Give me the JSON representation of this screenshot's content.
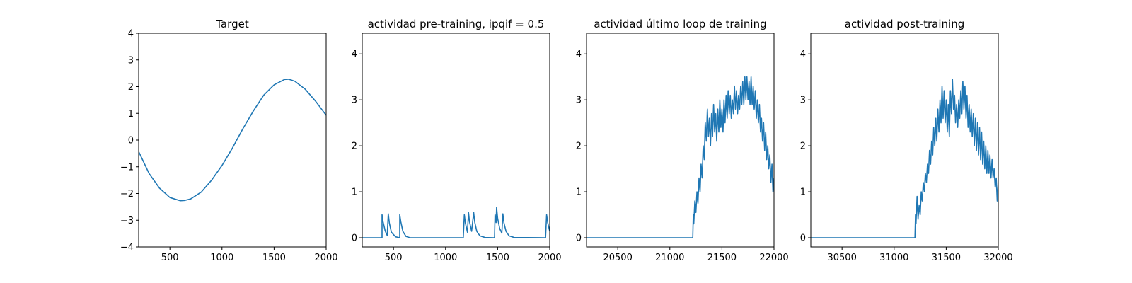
{
  "chart_data": [
    {
      "type": "line",
      "title": "Target",
      "xlim": [
        200,
        2000
      ],
      "ylim": [
        -4,
        4
      ],
      "xticks": [
        500,
        1000,
        1500,
        2000
      ],
      "yticks": [
        -4,
        -3,
        -2,
        -1,
        0,
        1,
        2,
        3,
        4
      ],
      "color": "#1f77b4",
      "series": [
        {
          "points": [
            [
              200,
              -0.43
            ],
            [
              300,
              -1.25
            ],
            [
              400,
              -1.8
            ],
            [
              500,
              -2.15
            ],
            [
              600,
              -2.27
            ],
            [
              640,
              -2.26
            ],
            [
              700,
              -2.2
            ],
            [
              800,
              -1.95
            ],
            [
              900,
              -1.5
            ],
            [
              1000,
              -0.95
            ],
            [
              1100,
              -0.3
            ],
            [
              1200,
              0.42
            ],
            [
              1300,
              1.08
            ],
            [
              1400,
              1.68
            ],
            [
              1500,
              2.07
            ],
            [
              1600,
              2.27
            ],
            [
              1640,
              2.28
            ],
            [
              1700,
              2.2
            ],
            [
              1800,
              1.9
            ],
            [
              1900,
              1.45
            ],
            [
              2000,
              0.93
            ]
          ]
        }
      ]
    },
    {
      "type": "line",
      "title": "actividad pre-training, ipqif = 0.5",
      "xlim": [
        200,
        2000
      ],
      "ylim": [
        -0.2,
        4.45
      ],
      "xticks": [
        500,
        1000,
        1500,
        2000
      ],
      "yticks": [
        0,
        1,
        2,
        3,
        4
      ],
      "color": "#1f77b4",
      "series": [
        {
          "points": [
            [
              200,
              0
            ],
            [
              390,
              0
            ],
            [
              390,
              0.5
            ],
            [
              400,
              0.35
            ],
            [
              420,
              0.15
            ],
            [
              440,
              0.05
            ],
            [
              450,
              0.52
            ],
            [
              460,
              0.32
            ],
            [
              480,
              0.12
            ],
            [
              520,
              0.02
            ],
            [
              560,
              0
            ],
            [
              560,
              0.5
            ],
            [
              570,
              0.35
            ],
            [
              590,
              0.14
            ],
            [
              620,
              0.03
            ],
            [
              660,
              0
            ],
            [
              1170,
              0
            ],
            [
              1180,
              0.5
            ],
            [
              1190,
              0.32
            ],
            [
              1210,
              0.12
            ],
            [
              1220,
              0.55
            ],
            [
              1230,
              0.35
            ],
            [
              1250,
              0.14
            ],
            [
              1270,
              0.55
            ],
            [
              1280,
              0.34
            ],
            [
              1300,
              0.14
            ],
            [
              1330,
              0.04
            ],
            [
              1380,
              0.005
            ],
            [
              1470,
              0
            ],
            [
              1475,
              0.5
            ],
            [
              1485,
              0.33
            ],
            [
              1490,
              0.66
            ],
            [
              1500,
              0.42
            ],
            [
              1520,
              0.2
            ],
            [
              1540,
              0.1
            ],
            [
              1550,
              0.52
            ],
            [
              1560,
              0.33
            ],
            [
              1580,
              0.14
            ],
            [
              1610,
              0.04
            ],
            [
              1660,
              0.005
            ],
            [
              1960,
              0
            ],
            [
              1970,
              0.5
            ],
            [
              1980,
              0.33
            ],
            [
              2000,
              0.14
            ]
          ]
        }
      ]
    },
    {
      "type": "line",
      "title": "actividad último loop de training",
      "xlim": [
        20200,
        22000
      ],
      "ylim": [
        -0.2,
        4.45
      ],
      "xticks": [
        20500,
        21000,
        21500,
        22000
      ],
      "yticks": [
        0,
        1,
        2,
        3,
        4
      ],
      "color": "#1f77b4",
      "series": [
        {
          "points": [
            [
              20200,
              0
            ],
            [
              21220,
              0
            ],
            [
              21225,
              0.5
            ],
            [
              21230,
              0.3
            ],
            [
              21240,
              0.8
            ],
            [
              21250,
              0.55
            ],
            [
              21260,
              1.0
            ],
            [
              21270,
              0.75
            ],
            [
              21280,
              1.3
            ],
            [
              21290,
              1.0
            ],
            [
              21300,
              1.6
            ],
            [
              21310,
              1.3
            ],
            [
              21320,
              2.0
            ],
            [
              21330,
              1.7
            ],
            [
              21340,
              2.5
            ],
            [
              21350,
              2.1
            ],
            [
              21360,
              2.8
            ],
            [
              21370,
              2.2
            ],
            [
              21380,
              2.6
            ],
            [
              21390,
              2.0
            ],
            [
              21400,
              2.7
            ],
            [
              21410,
              2.2
            ],
            [
              21420,
              2.9
            ],
            [
              21430,
              2.3
            ],
            [
              21440,
              2.7
            ],
            [
              21450,
              2.1
            ],
            [
              21460,
              2.8
            ],
            [
              21470,
              2.3
            ],
            [
              21480,
              3.0
            ],
            [
              21490,
              2.4
            ],
            [
              21500,
              2.8
            ],
            [
              21510,
              2.3
            ],
            [
              21520,
              3.0
            ],
            [
              21530,
              2.5
            ],
            [
              21540,
              3.1
            ],
            [
              21550,
              2.6
            ],
            [
              21560,
              3.2
            ],
            [
              21570,
              2.7
            ],
            [
              21580,
              3.1
            ],
            [
              21590,
              2.6
            ],
            [
              21600,
              3.0
            ],
            [
              21610,
              2.7
            ],
            [
              21620,
              3.3
            ],
            [
              21630,
              2.8
            ],
            [
              21640,
              3.2
            ],
            [
              21650,
              2.7
            ],
            [
              21660,
              3.1
            ],
            [
              21670,
              2.8
            ],
            [
              21680,
              3.3
            ],
            [
              21690,
              2.9
            ],
            [
              21700,
              3.4
            ],
            [
              21710,
              2.9
            ],
            [
              21720,
              3.5
            ],
            [
              21730,
              3.0
            ],
            [
              21740,
              3.5
            ],
            [
              21750,
              3.0
            ],
            [
              21760,
              3.4
            ],
            [
              21770,
              2.9
            ],
            [
              21780,
              3.5
            ],
            [
              21790,
              2.9
            ],
            [
              21800,
              3.3
            ],
            [
              21810,
              2.8
            ],
            [
              21820,
              3.2
            ],
            [
              21830,
              2.6
            ],
            [
              21840,
              3.0
            ],
            [
              21850,
              2.5
            ],
            [
              21860,
              2.9
            ],
            [
              21870,
              2.3
            ],
            [
              21880,
              2.6
            ],
            [
              21890,
              2.1
            ],
            [
              21900,
              2.5
            ],
            [
              21910,
              1.9
            ],
            [
              21920,
              2.3
            ],
            [
              21930,
              1.7
            ],
            [
              21940,
              2.0
            ],
            [
              21950,
              1.5
            ],
            [
              21960,
              1.8
            ],
            [
              21970,
              1.2
            ],
            [
              21980,
              1.6
            ],
            [
              21990,
              1.0
            ],
            [
              22000,
              1.3
            ]
          ]
        }
      ]
    },
    {
      "type": "line",
      "title": "actividad post-training",
      "xlim": [
        30200,
        32000
      ],
      "ylim": [
        -0.2,
        4.45
      ],
      "xticks": [
        30500,
        31000,
        31500,
        32000
      ],
      "yticks": [
        0,
        1,
        2,
        3,
        4
      ],
      "color": "#1f77b4",
      "series": [
        {
          "points": [
            [
              30200,
              0
            ],
            [
              31200,
              0
            ],
            [
              31205,
              0.5
            ],
            [
              31210,
              0.3
            ],
            [
              31220,
              0.9
            ],
            [
              31230,
              0.4
            ],
            [
              31240,
              0.7
            ],
            [
              31250,
              0.5
            ],
            [
              31260,
              1.0
            ],
            [
              31270,
              0.8
            ],
            [
              31280,
              1.2
            ],
            [
              31290,
              1.0
            ],
            [
              31300,
              1.4
            ],
            [
              31310,
              1.2
            ],
            [
              31320,
              1.6
            ],
            [
              31330,
              1.4
            ],
            [
              31340,
              1.9
            ],
            [
              31350,
              1.6
            ],
            [
              31360,
              2.1
            ],
            [
              31370,
              1.8
            ],
            [
              31380,
              2.4
            ],
            [
              31390,
              2.0
            ],
            [
              31400,
              2.6
            ],
            [
              31410,
              2.1
            ],
            [
              31420,
              2.8
            ],
            [
              31430,
              2.3
            ],
            [
              31440,
              3.0
            ],
            [
              31450,
              2.5
            ],
            [
              31460,
              3.3
            ],
            [
              31470,
              2.6
            ],
            [
              31480,
              3.2
            ],
            [
              31490,
              2.5
            ],
            [
              31500,
              3.0
            ],
            [
              31510,
              2.3
            ],
            [
              31520,
              2.9
            ],
            [
              31530,
              2.2
            ],
            [
              31540,
              3.2
            ],
            [
              31550,
              2.7
            ],
            [
              31560,
              3.45
            ],
            [
              31570,
              2.8
            ],
            [
              31580,
              3.1
            ],
            [
              31590,
              2.5
            ],
            [
              31600,
              2.9
            ],
            [
              31610,
              2.4
            ],
            [
              31620,
              3.0
            ],
            [
              31630,
              2.6
            ],
            [
              31640,
              3.2
            ],
            [
              31650,
              2.7
            ],
            [
              31660,
              3.4
            ],
            [
              31670,
              2.8
            ],
            [
              31680,
              3.3
            ],
            [
              31690,
              2.6
            ],
            [
              31700,
              3.1
            ],
            [
              31710,
              2.4
            ],
            [
              31720,
              2.9
            ],
            [
              31730,
              2.3
            ],
            [
              31740,
              2.8
            ],
            [
              31750,
              2.2
            ],
            [
              31760,
              2.7
            ],
            [
              31770,
              2.0
            ],
            [
              31780,
              2.6
            ],
            [
              31790,
              1.9
            ],
            [
              31800,
              2.5
            ],
            [
              31810,
              1.8
            ],
            [
              31820,
              2.4
            ],
            [
              31830,
              1.7
            ],
            [
              31840,
              2.3
            ],
            [
              31850,
              1.6
            ],
            [
              31860,
              2.1
            ],
            [
              31870,
              1.5
            ],
            [
              31880,
              2.0
            ],
            [
              31890,
              1.4
            ],
            [
              31900,
              1.9
            ],
            [
              31910,
              1.4
            ],
            [
              31920,
              1.8
            ],
            [
              31930,
              1.3
            ],
            [
              31940,
              1.7
            ],
            [
              31950,
              1.3
            ],
            [
              31960,
              1.5
            ],
            [
              31970,
              1.1
            ],
            [
              31980,
              1.3
            ],
            [
              31990,
              0.8
            ],
            [
              32000,
              1.2
            ]
          ]
        }
      ]
    }
  ]
}
